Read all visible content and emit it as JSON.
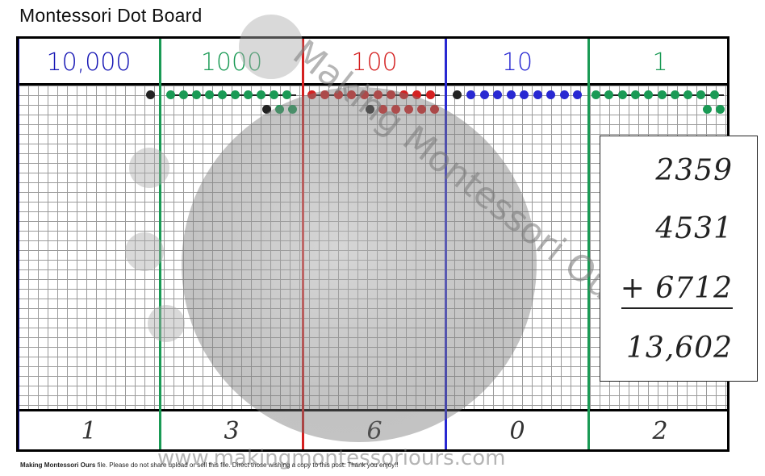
{
  "title": "Montessori Dot Board",
  "columns": [
    {
      "label": "10,000",
      "color": "#1414b4",
      "answer": "1"
    },
    {
      "label": "1000",
      "color": "#1a9a55",
      "answer": "3"
    },
    {
      "label": "100",
      "color": "#d42020",
      "answer": "6"
    },
    {
      "label": "10",
      "color": "#2828d2",
      "answer": "0"
    },
    {
      "label": "1",
      "color": "#1a9a55",
      "answer": "2"
    }
  ],
  "calculation": {
    "addend1": "2359",
    "addend2": "4531",
    "addend3": "+ 6712",
    "sum": "13,602"
  },
  "watermark": {
    "brand": "Making Montessori Ours",
    "url": "www.makingmontessoriours.com"
  },
  "footer": {
    "brand": "Making Montessori Ours",
    "text": " file. Please do not share upload or sell this file. Direct those wishing a copy to this post.  Thank you enjoy!!"
  }
}
